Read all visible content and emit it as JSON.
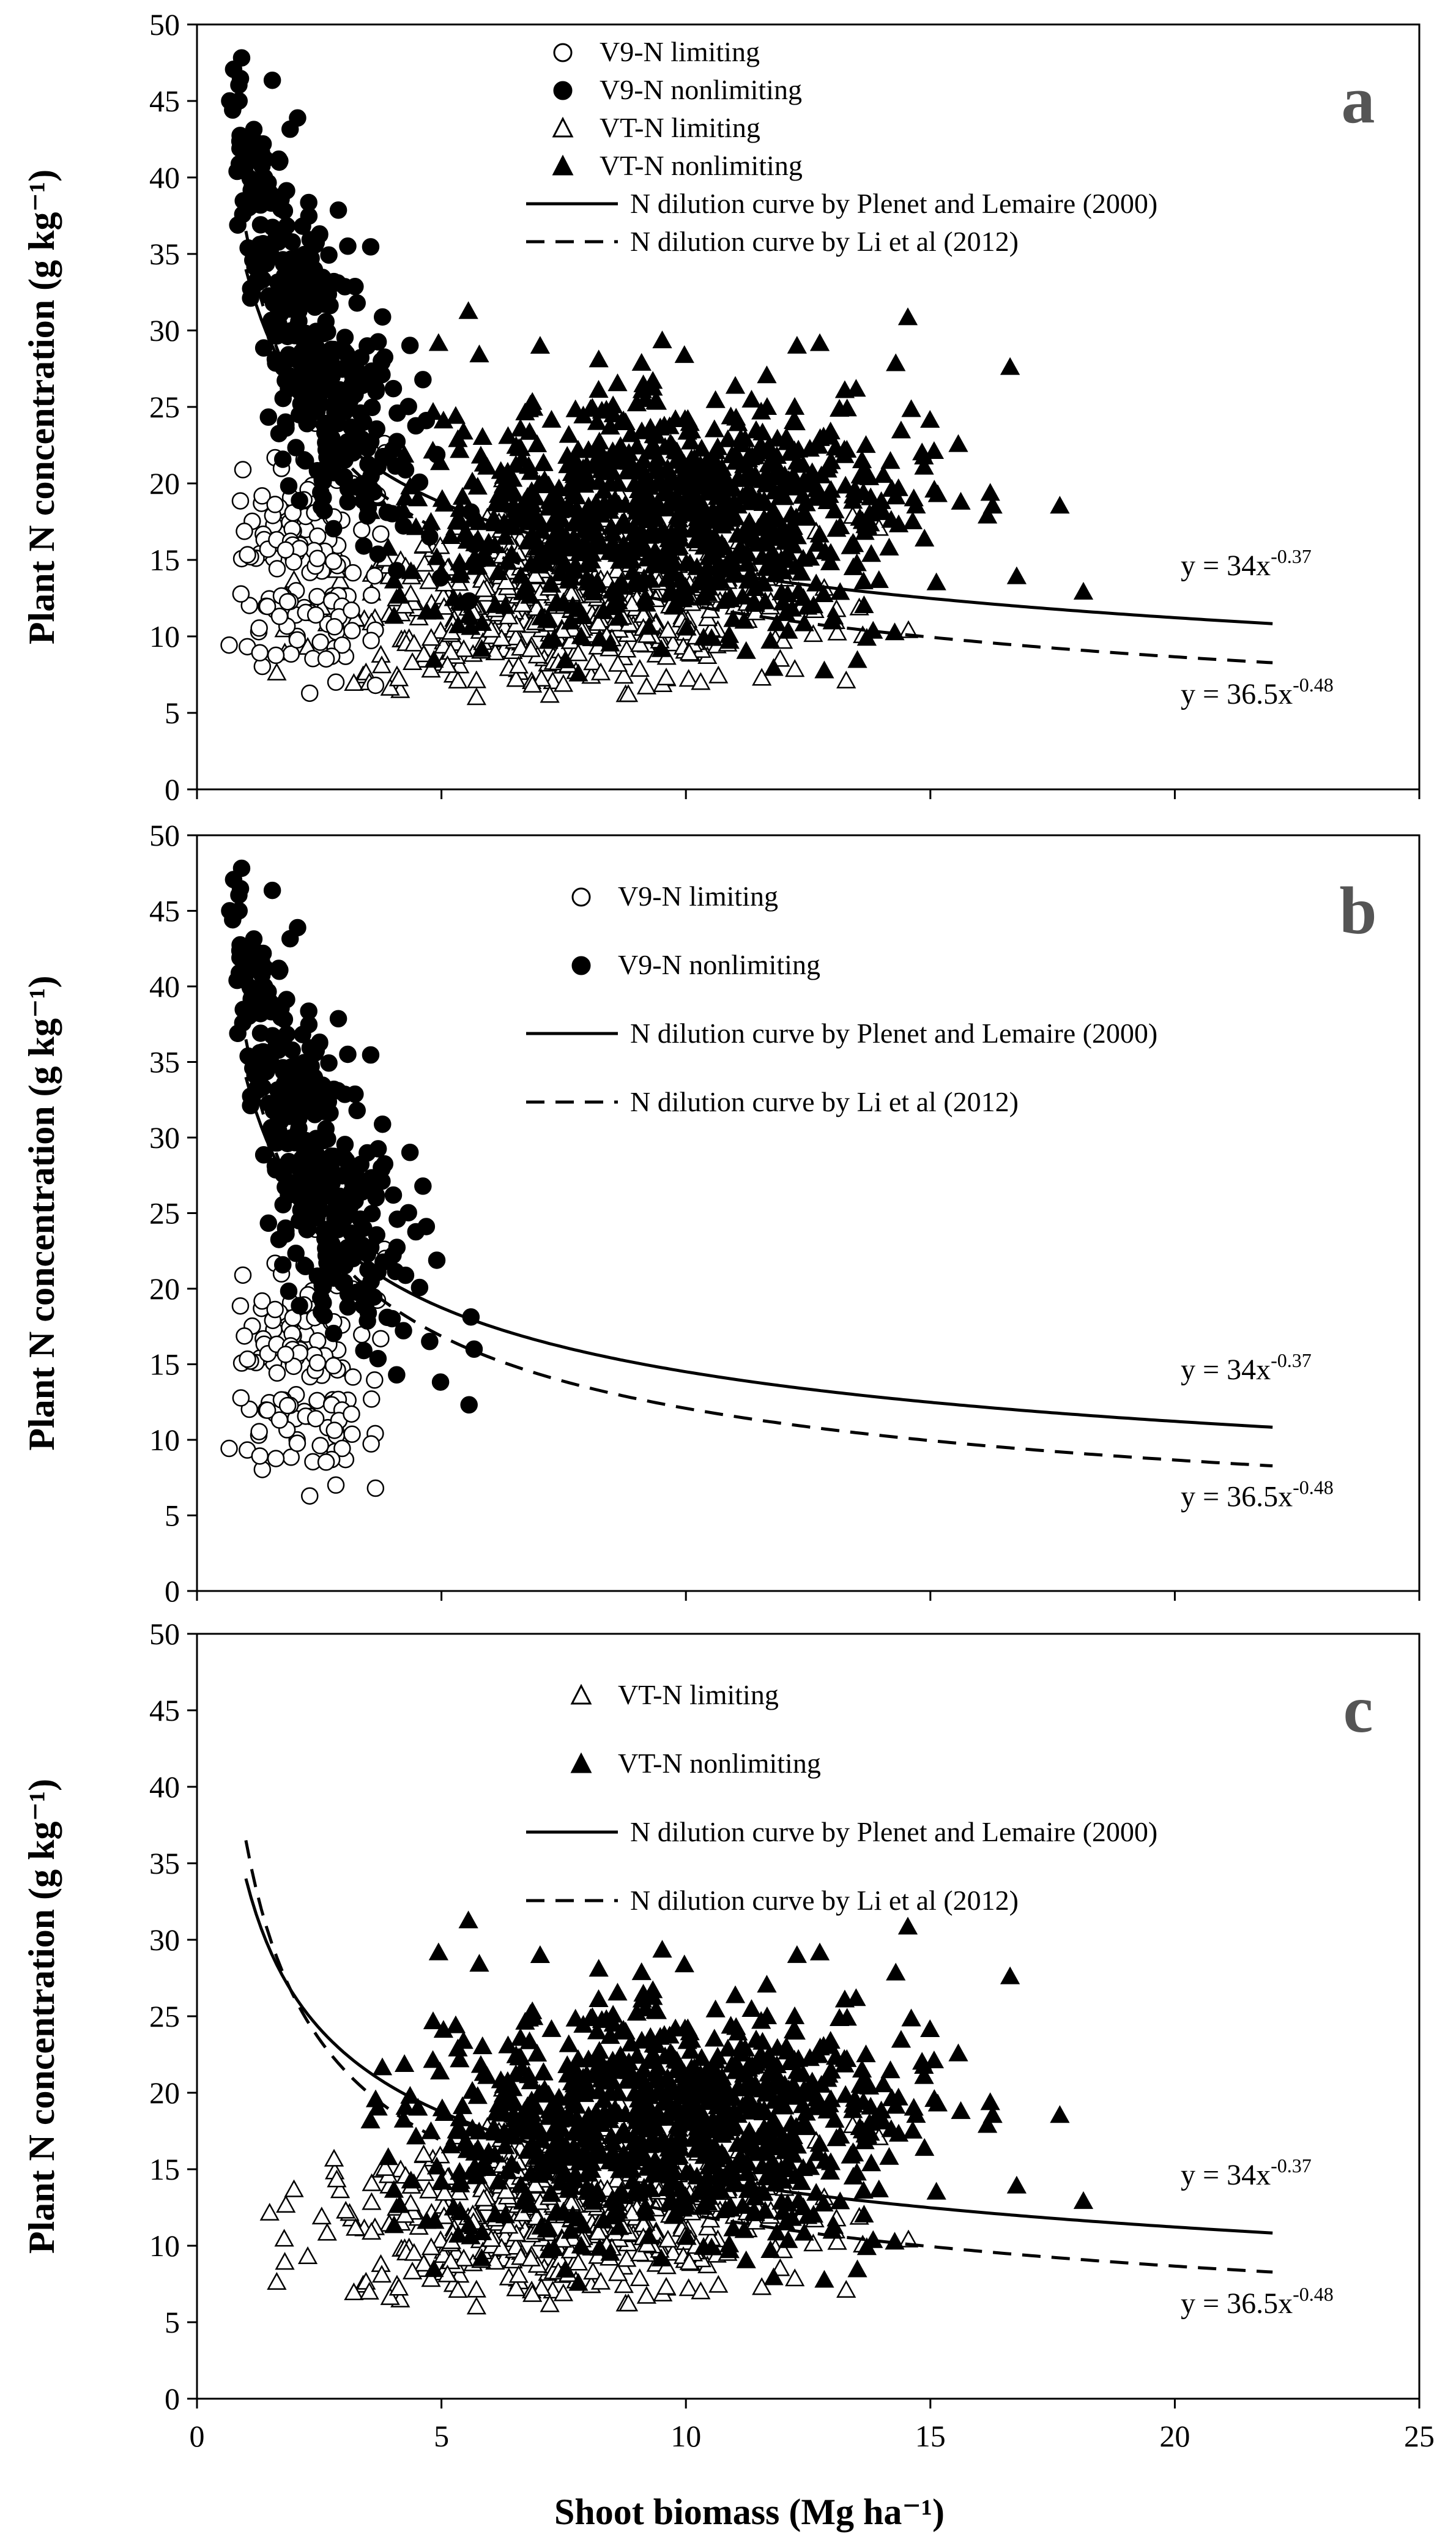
{
  "chart_data": {
    "type": "scatter",
    "xlabel": "Shoot biomass (Mg ha⁻¹)",
    "ylabel": "Plant N concentration  (g kg⁻¹)",
    "xlim": [
      0,
      25
    ],
    "ylim": [
      0,
      50
    ],
    "xticks": [
      0,
      5,
      10,
      15,
      20,
      25
    ],
    "yticks": [
      0,
      5,
      10,
      15,
      20,
      25,
      30,
      35,
      40,
      45,
      50
    ],
    "curves": [
      {
        "name": "N dilution curve by Plenet and Lemaire (2000)",
        "style": "solid",
        "a": 34,
        "b": 0.37,
        "x_range": [
          1,
          22
        ],
        "equation": "y = 34x",
        "exponent": "-0.37"
      },
      {
        "name": "N dilution curve by Li et al (2012)",
        "style": "dashed",
        "a": 36.5,
        "b": 0.48,
        "x_range": [
          1,
          22
        ],
        "equation": "y = 36.5x",
        "exponent": "-0.48"
      }
    ],
    "series_defs": {
      "v9_limiting": {
        "name": "V9-N limiting",
        "marker": "circle-open",
        "center": [
          2,
          15
        ],
        "spread": [
          0.9,
          4.5
        ],
        "count": 130
      },
      "v9_nonlimiting": {
        "name": "V9-N nonlimiting",
        "marker": "circle-filled",
        "center": [
          2.2,
          30
        ],
        "spread": [
          1.2,
          7
        ],
        "count": 360
      },
      "vt_limiting": {
        "name": "VT-N limiting",
        "marker": "triangle-open",
        "center": [
          7.5,
          11.5
        ],
        "spread": [
          2.5,
          3
        ],
        "count": 450
      },
      "vt_nonlimiting": {
        "name": "VT-N nonlimiting",
        "marker": "triangle-filled",
        "center": [
          9.5,
          18
        ],
        "spread": [
          2.6,
          4.2
        ],
        "count": 900
      }
    },
    "panels": [
      {
        "id": "a",
        "letter": "a",
        "series": [
          "v9_limiting",
          "v9_nonlimiting",
          "vt_limiting",
          "vt_nonlimiting"
        ]
      },
      {
        "id": "b",
        "letter": "b",
        "series": [
          "v9_limiting",
          "v9_nonlimiting"
        ]
      },
      {
        "id": "c",
        "letter": "c",
        "series": [
          "vt_limiting",
          "vt_nonlimiting"
        ]
      }
    ]
  }
}
